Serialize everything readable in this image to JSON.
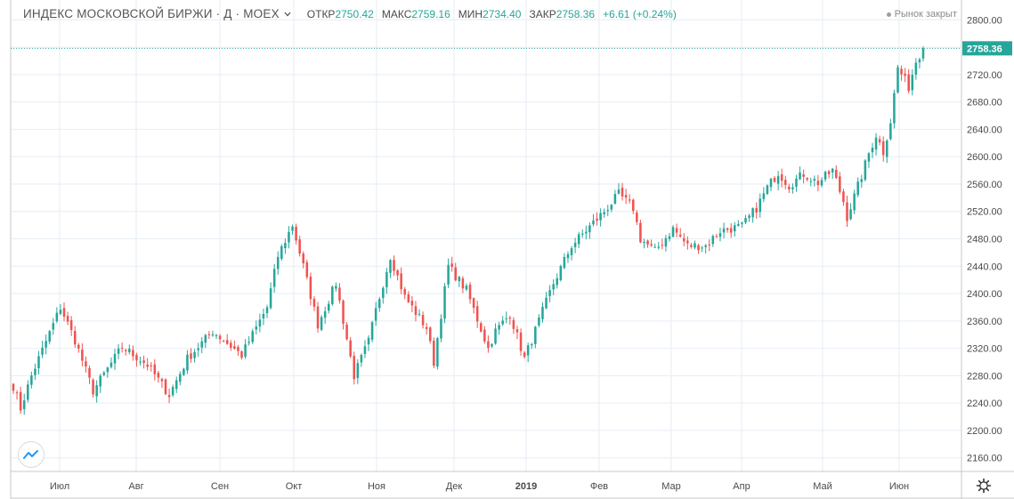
{
  "header": {
    "symbol": "ИНДЕКС МОСКОВСКОЙ БИРЖИ · Д · MOEX",
    "ohlc": [
      {
        "label": "ОТКР",
        "value": "2750.42"
      },
      {
        "label": "МАКС",
        "value": "2759.16"
      },
      {
        "label": "МИН",
        "value": "2734.40"
      },
      {
        "label": "ЗАКР",
        "value": "2758.36"
      }
    ],
    "change": "+6.61 (+0.24%)",
    "market_status": "Рынок закрыт"
  },
  "icons": {
    "chevron": "chevron-down-icon",
    "logo": "tradingview-logo-icon",
    "settings": "gear-icon"
  },
  "colors": {
    "up": "#26a69a",
    "down": "#ef5350",
    "grid": "#e6eef5",
    "last_price_line": "#26a69a"
  },
  "chart_data": {
    "type": "candlestick",
    "x_tick_labels": [
      "Июл",
      "Авг",
      "Сен",
      "Окт",
      "Ноя",
      "Дек",
      "2019",
      "Фев",
      "Мар",
      "Апр",
      "Май",
      "Июн"
    ],
    "y_tick_labels": [
      "2160.00",
      "2200.00",
      "2240.00",
      "2280.00",
      "2320.00",
      "2360.00",
      "2400.00",
      "2440.00",
      "2480.00",
      "2520.00",
      "2560.00",
      "2600.00",
      "2640.00",
      "2680.00",
      "2720.00",
      "2760.00",
      "2800.00"
    ],
    "last_price_label": "2758.36",
    "ylim": [
      2130,
      2825
    ],
    "monthly_opens": [
      {
        "month": "Июл",
        "value": 2265
      },
      {
        "month": "Авг",
        "value": 2290
      },
      {
        "month": "Сен",
        "value": 2275
      },
      {
        "month": "Окт",
        "value": 2455
      },
      {
        "month": "Ноя",
        "value": 2325
      },
      {
        "month": "Дек",
        "value": 2370
      },
      {
        "month": "2019",
        "value": 2370
      },
      {
        "month": "Фев",
        "value": 2505
      },
      {
        "month": "Мар",
        "value": 2470
      },
      {
        "month": "Апр",
        "value": 2475
      },
      {
        "month": "Май",
        "value": 2560
      },
      {
        "month": "Июн",
        "value": 2630
      }
    ],
    "close_path": [
      [
        0,
        2265
      ],
      [
        2,
        2232
      ],
      [
        5,
        2280
      ],
      [
        13,
        2380
      ],
      [
        17,
        2332
      ],
      [
        22,
        2258
      ],
      [
        30,
        2322
      ],
      [
        37,
        2296
      ],
      [
        43,
        2252
      ],
      [
        48,
        2305
      ],
      [
        55,
        2345
      ],
      [
        63,
        2310
      ],
      [
        70,
        2380
      ],
      [
        73,
        2455
      ],
      [
        77,
        2500
      ],
      [
        80,
        2440
      ],
      [
        84,
        2355
      ],
      [
        89,
        2415
      ],
      [
        94,
        2280
      ],
      [
        98,
        2330
      ],
      [
        100,
        2375
      ],
      [
        104,
        2455
      ],
      [
        108,
        2395
      ],
      [
        114,
        2350
      ],
      [
        116,
        2300
      ],
      [
        120,
        2440
      ],
      [
        125,
        2405
      ],
      [
        131,
        2320
      ],
      [
        133,
        2345
      ],
      [
        137,
        2370
      ],
      [
        141,
        2305
      ],
      [
        149,
        2415
      ],
      [
        154,
        2470
      ],
      [
        159,
        2498
      ],
      [
        163,
        2520
      ],
      [
        167,
        2545
      ],
      [
        171,
        2525
      ],
      [
        173,
        2480
      ],
      [
        177,
        2462
      ],
      [
        182,
        2495
      ],
      [
        186,
        2470
      ],
      [
        191,
        2470
      ],
      [
        195,
        2492
      ],
      [
        201,
        2498
      ],
      [
        205,
        2525
      ],
      [
        208,
        2555
      ],
      [
        211,
        2577
      ],
      [
        214,
        2558
      ],
      [
        218,
        2575
      ],
      [
        222,
        2562
      ],
      [
        226,
        2580
      ],
      [
        229,
        2535
      ],
      [
        230,
        2512
      ],
      [
        234,
        2572
      ],
      [
        236,
        2605
      ],
      [
        238,
        2632
      ],
      [
        240,
        2607
      ],
      [
        242,
        2652
      ],
      [
        244,
        2730
      ],
      [
        247,
        2702
      ],
      [
        249,
        2740
      ],
      [
        251,
        2758.36
      ]
    ]
  }
}
